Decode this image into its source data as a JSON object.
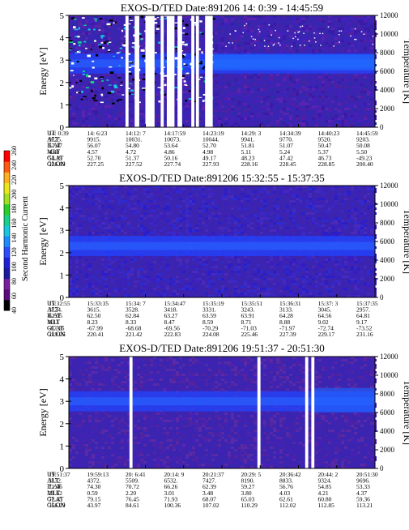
{
  "chart_data": [
    {
      "type": "heatmap",
      "title": "EXOS-D/TED   Date:891206  14: 0:39 - 14:45:59",
      "ylabel": "Energy [eV]",
      "ylim": [
        0,
        5
      ],
      "yticks": [
        "0",
        "1",
        "2",
        "3",
        "4",
        "5"
      ],
      "y2label": "Temperature [K]",
      "y2lim": [
        0,
        12000
      ],
      "y2ticks": [
        "0",
        "2000",
        "4000",
        "6000",
        "8000",
        "10000",
        "12000"
      ],
      "grid": false,
      "band_center_ev": 2.85,
      "white_gaps_fraction": [
        [
          0.185,
          0.195
        ],
        [
          0.215,
          0.23
        ],
        [
          0.25,
          0.28
        ],
        [
          0.3,
          0.31
        ],
        [
          0.32,
          0.345
        ],
        [
          0.355,
          0.37
        ],
        [
          0.4,
          0.41
        ],
        [
          0.415,
          0.425
        ],
        [
          0.445,
          0.47
        ]
      ],
      "info_rows": [
        {
          "label": "UT",
          "values": [
            "14: 0:39",
            "14: 6:23",
            "14:12: 7",
            "14:17:59",
            "14:23:19",
            "14:29: 3",
            "14:34:39",
            "14:40:23",
            "14:45:59"
          ]
        },
        {
          "label": "ALT",
          "values": [
            "9725.",
            "9915.",
            "10031.",
            "10073.",
            "10044.",
            "9941.",
            "9770.",
            "9520.",
            "9203."
          ]
        },
        {
          "label": "ILAT",
          "values": [
            "57.47",
            "56.07",
            "54.80",
            "53.64",
            "52.70",
            "51.81",
            "51.07",
            "50.47",
            "50.08"
          ]
        },
        {
          "label": "MLT",
          "values": [
            "4.40",
            "4.57",
            "4.72",
            "4.86",
            "4.98",
            "5.11",
            "5.24",
            "5.37",
            "5.50"
          ]
        },
        {
          "label": "GLAT",
          "values": [
            "54.19",
            "52.70",
            "51.37",
            "50.16",
            "49.17",
            "48.23",
            "47.42",
            "46.73",
            "-49.23"
          ]
        },
        {
          "label": "GLON",
          "values": [
            "226.89",
            "227.25",
            "227.52",
            "227.74",
            "227.93",
            "228.16",
            "228.45",
            "228.85",
            "200.40"
          ]
        }
      ]
    },
    {
      "type": "heatmap",
      "title": "EXOS-D/TED   Date:891206  15:32:55 - 15:37:35",
      "ylabel": "Energy [eV]",
      "ylim": [
        0,
        5
      ],
      "yticks": [
        "0",
        "1",
        "2",
        "3",
        "4",
        "5"
      ],
      "y2label": "Temperature [K]",
      "y2lim": [
        0,
        12000
      ],
      "y2ticks": [
        "0",
        "2000",
        "4000",
        "6000",
        "8000",
        "10000",
        "12000"
      ],
      "grid": false,
      "band_center_ev": 2.3,
      "white_gaps_fraction": [],
      "info_rows": [
        {
          "label": "UT",
          "values": [
            "15:32:55",
            "15:33:35",
            "15:34: 7",
            "15:34:47",
            "15:35:19",
            "15:35:51",
            "15:36:31",
            "15:37: 3",
            "15:37:35"
          ]
        },
        {
          "label": "ALT",
          "values": [
            "3724.",
            "3615.",
            "3528.",
            "3418.",
            "3331.",
            "3243.",
            "3133.",
            "3045.",
            "2957."
          ]
        },
        {
          "label": "ILAT",
          "values": [
            "62.05",
            "62.50",
            "62.84",
            "63.27",
            "63.59",
            "63.91",
            "64.28",
            "64.56",
            "64.81"
          ]
        },
        {
          "label": "MLT",
          "values": [
            "8.11",
            "8.23",
            "8.33",
            "8.47",
            "8.59",
            "8.71",
            "8.88",
            "9.02",
            "9.17"
          ]
        },
        {
          "label": "GLAT",
          "values": [
            "-67.16",
            "-67.99",
            "-68.68",
            "-69.56",
            "-70.29",
            "-71.03",
            "-71.97",
            "-72.74",
            "-73.52"
          ]
        },
        {
          "label": "GLON",
          "values": [
            "219.26",
            "220.41",
            "221.42",
            "222.83",
            "224.08",
            "225.46",
            "227.39",
            "229.17",
            "231.16"
          ]
        }
      ]
    },
    {
      "type": "heatmap",
      "title": "EXOS-D/TED   Date:891206  19:51:37 - 20:51:30",
      "ylabel": "Energy [eV]",
      "ylim": [
        0,
        5
      ],
      "yticks": [
        "0",
        "1",
        "2",
        "3",
        "4",
        "5"
      ],
      "y2label": "Temperature [K]",
      "y2lim": [
        0,
        12000
      ],
      "y2ticks": [
        "0",
        "2000",
        "4000",
        "6000",
        "8000",
        "10000",
        "12000"
      ],
      "grid": false,
      "band_center_ev": 3.0,
      "white_gaps_fraction": [
        [
          0.198,
          0.208
        ],
        [
          0.616,
          0.626
        ],
        [
          0.772,
          0.782
        ],
        [
          0.792,
          0.802
        ]
      ],
      "info_rows": [
        {
          "label": "UT",
          "values": [
            "19:51:37",
            "19:59:13",
            "20: 6:41",
            "20:14: 9",
            "20:21:37",
            "20:29: 5",
            "20:36:42",
            "20:44: 2",
            "20:51:30"
          ]
        },
        {
          "label": "ALT",
          "values": [
            "3132.",
            "4372.",
            "5509.",
            "6532.",
            "7427.",
            "8190.",
            "8833.",
            "9324.",
            "9696."
          ]
        },
        {
          "label": "ILAT",
          "values": [
            "71.46",
            "74.30",
            "70.72",
            "66.26",
            "62.39",
            "59.27",
            "56.76",
            "54.85",
            "53.33"
          ]
        },
        {
          "label": "MLT",
          "values": [
            "21.62",
            "0.59",
            "2.20",
            "3.01",
            "3.48",
            "3.80",
            "4.03",
            "4.21",
            "4.37"
          ]
        },
        {
          "label": "GLAT",
          "values": [
            "72.45",
            "79.15",
            "76.45",
            "71.93",
            "68.07",
            "65.03",
            "62.61",
            "60.80",
            "59.36"
          ]
        },
        {
          "label": "GLON",
          "values": [
            "356.29",
            "43.97",
            "84.61",
            "100.36",
            "107.02",
            "110.29",
            "112.02",
            "112.85",
            "113.21"
          ]
        }
      ]
    }
  ],
  "colorbar": {
    "label": "Second Harmonic Current",
    "range": [
      40,
      260
    ],
    "ticks": [
      "40",
      "60",
      "80",
      "100",
      "120",
      "140",
      "160",
      "180",
      "200",
      "220",
      "240",
      "260"
    ],
    "colors": [
      "#000000",
      "#5a0a7a",
      "#7a1f9e",
      "#1a1aa0",
      "#1f1fd8",
      "#2b4dff",
      "#1e8cff",
      "#19c8e0",
      "#18d08a",
      "#2ad02a",
      "#a0e020",
      "#e8e81a",
      "#ffb020",
      "#ff5a10",
      "#ff0000"
    ]
  }
}
